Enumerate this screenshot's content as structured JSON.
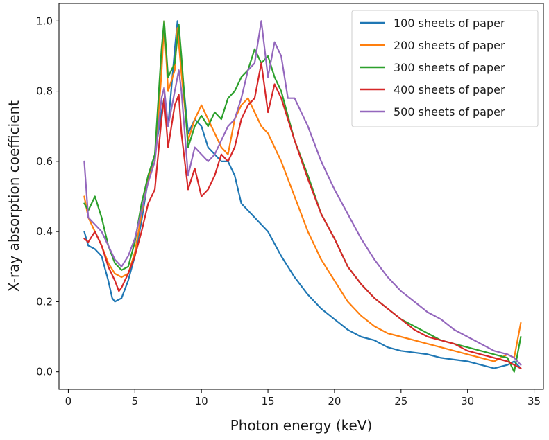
{
  "chart_data": {
    "type": "line",
    "title": "",
    "xlabel": "Photon energy (keV)",
    "ylabel": "X-ray absorption coefficient",
    "xlim": [
      -0.7,
      35.7
    ],
    "ylim": [
      -0.05,
      1.05
    ],
    "xticks": [
      0,
      5,
      10,
      15,
      20,
      25,
      30,
      35
    ],
    "yticks": [
      0.0,
      0.2,
      0.4,
      0.6,
      0.8,
      1.0
    ],
    "ytick_labels": [
      "0.0",
      "0.2",
      "0.4",
      "0.6",
      "0.8",
      "1.0"
    ],
    "grid": false,
    "legend_position": "top-right",
    "series": [
      {
        "name": "100 sheets of paper",
        "color": "#1f77b4",
        "x": [
          1.2,
          1.5,
          2.0,
          2.5,
          3.0,
          3.3,
          3.5,
          4.0,
          4.5,
          5.0,
          5.5,
          6.0,
          6.5,
          7.0,
          7.2,
          7.5,
          8.0,
          8.2,
          8.5,
          9.0,
          9.5,
          10.0,
          10.5,
          11.0,
          11.5,
          12.0,
          12.5,
          13.0,
          14.0,
          15.0,
          16.0,
          17.0,
          18.0,
          19.0,
          20.0,
          21.0,
          22.0,
          23.0,
          24.0,
          25.0,
          26.0,
          27.0,
          28.0,
          29.0,
          30.0,
          31.0,
          32.0,
          33.0,
          33.5,
          34.0
        ],
        "y": [
          0.4,
          0.36,
          0.35,
          0.33,
          0.26,
          0.21,
          0.2,
          0.21,
          0.26,
          0.33,
          0.43,
          0.55,
          0.62,
          0.74,
          0.78,
          0.7,
          0.92,
          1.0,
          0.88,
          0.68,
          0.72,
          0.7,
          0.64,
          0.62,
          0.6,
          0.6,
          0.56,
          0.48,
          0.44,
          0.4,
          0.33,
          0.27,
          0.22,
          0.18,
          0.15,
          0.12,
          0.1,
          0.09,
          0.07,
          0.06,
          0.055,
          0.05,
          0.04,
          0.035,
          0.03,
          0.02,
          0.01,
          0.02,
          0.03,
          0.01
        ]
      },
      {
        "name": "200 sheets of paper",
        "color": "#ff7f0e",
        "x": [
          1.2,
          1.5,
          2.0,
          2.5,
          3.0,
          3.5,
          4.0,
          4.5,
          5.0,
          5.5,
          6.0,
          6.5,
          7.0,
          7.2,
          7.5,
          8.0,
          8.2,
          8.5,
          9.0,
          9.5,
          10.0,
          10.5,
          11.0,
          11.5,
          12.0,
          12.5,
          13.0,
          13.5,
          14.0,
          14.5,
          15.0,
          16.0,
          17.0,
          18.0,
          19.0,
          20.0,
          21.0,
          22.0,
          23.0,
          24.0,
          25.0,
          26.0,
          27.0,
          28.0,
          29.0,
          30.0,
          31.0,
          32.0,
          33.0,
          33.5,
          34.0
        ],
        "y": [
          0.5,
          0.44,
          0.4,
          0.36,
          0.31,
          0.28,
          0.27,
          0.28,
          0.34,
          0.45,
          0.55,
          0.6,
          0.85,
          1.0,
          0.8,
          0.86,
          0.98,
          0.85,
          0.66,
          0.72,
          0.76,
          0.72,
          0.68,
          0.64,
          0.62,
          0.72,
          0.76,
          0.78,
          0.74,
          0.7,
          0.68,
          0.6,
          0.5,
          0.4,
          0.32,
          0.26,
          0.2,
          0.16,
          0.13,
          0.11,
          0.1,
          0.09,
          0.08,
          0.07,
          0.06,
          0.05,
          0.04,
          0.03,
          0.05,
          0.04,
          0.14
        ]
      },
      {
        "name": "300 sheets of paper",
        "color": "#2ca02c",
        "x": [
          1.2,
          1.5,
          2.0,
          2.5,
          3.0,
          3.5,
          4.0,
          4.5,
          5.0,
          5.5,
          6.0,
          6.5,
          7.0,
          7.2,
          7.5,
          8.0,
          8.3,
          8.5,
          9.0,
          9.5,
          10.0,
          10.5,
          11.0,
          11.5,
          12.0,
          12.5,
          13.0,
          13.5,
          14.0,
          14.5,
          15.0,
          15.5,
          16.0,
          17.0,
          18.0,
          19.0,
          20.0,
          21.0,
          22.0,
          23.0,
          24.0,
          25.0,
          26.0,
          27.0,
          28.0,
          29.0,
          30.0,
          31.0,
          32.0,
          33.0,
          33.5,
          34.0
        ],
        "y": [
          0.48,
          0.46,
          0.5,
          0.44,
          0.36,
          0.31,
          0.29,
          0.3,
          0.37,
          0.48,
          0.56,
          0.62,
          0.92,
          1.0,
          0.84,
          0.88,
          0.99,
          0.9,
          0.64,
          0.7,
          0.73,
          0.7,
          0.74,
          0.72,
          0.78,
          0.8,
          0.84,
          0.86,
          0.92,
          0.88,
          0.9,
          0.84,
          0.8,
          0.66,
          0.56,
          0.45,
          0.38,
          0.3,
          0.25,
          0.21,
          0.18,
          0.15,
          0.13,
          0.11,
          0.09,
          0.08,
          0.07,
          0.06,
          0.05,
          0.04,
          0.0,
          0.1
        ]
      },
      {
        "name": "400 sheets of paper",
        "color": "#d62728",
        "x": [
          1.2,
          1.5,
          2.0,
          2.5,
          3.0,
          3.5,
          3.8,
          4.0,
          4.5,
          5.0,
          5.5,
          6.0,
          6.5,
          7.0,
          7.2,
          7.5,
          8.0,
          8.3,
          8.5,
          9.0,
          9.5,
          10.0,
          10.5,
          11.0,
          11.5,
          12.0,
          12.5,
          13.0,
          13.5,
          14.0,
          14.5,
          15.0,
          15.5,
          16.0,
          17.0,
          18.0,
          19.0,
          20.0,
          21.0,
          22.0,
          23.0,
          24.0,
          25.0,
          26.0,
          27.0,
          28.0,
          29.0,
          30.0,
          31.0,
          32.0,
          33.0,
          33.5,
          34.0
        ],
        "y": [
          0.38,
          0.37,
          0.4,
          0.36,
          0.3,
          0.26,
          0.23,
          0.24,
          0.28,
          0.33,
          0.4,
          0.48,
          0.52,
          0.72,
          0.78,
          0.64,
          0.76,
          0.79,
          0.68,
          0.52,
          0.58,
          0.5,
          0.52,
          0.56,
          0.62,
          0.6,
          0.64,
          0.72,
          0.76,
          0.78,
          0.88,
          0.74,
          0.82,
          0.78,
          0.66,
          0.55,
          0.45,
          0.38,
          0.3,
          0.25,
          0.21,
          0.18,
          0.15,
          0.12,
          0.1,
          0.09,
          0.08,
          0.06,
          0.05,
          0.04,
          0.03,
          0.02,
          0.01
        ]
      },
      {
        "name": "500 sheets of paper",
        "color": "#9467bd",
        "x": [
          1.2,
          1.5,
          2.0,
          2.5,
          3.0,
          3.5,
          4.0,
          4.5,
          5.0,
          5.5,
          6.0,
          6.5,
          7.0,
          7.2,
          7.5,
          8.0,
          8.3,
          8.5,
          9.0,
          9.5,
          10.0,
          10.5,
          11.0,
          11.5,
          12.0,
          12.5,
          13.0,
          13.5,
          14.0,
          14.5,
          15.0,
          15.5,
          16.0,
          16.5,
          17.0,
          18.0,
          19.0,
          20.0,
          21.0,
          22.0,
          23.0,
          24.0,
          25.0,
          26.0,
          27.0,
          28.0,
          29.0,
          30.0,
          31.0,
          32.0,
          33.0,
          33.5,
          34.0
        ],
        "y": [
          0.6,
          0.44,
          0.42,
          0.4,
          0.36,
          0.32,
          0.3,
          0.33,
          0.38,
          0.46,
          0.54,
          0.6,
          0.78,
          0.81,
          0.7,
          0.8,
          0.86,
          0.8,
          0.56,
          0.64,
          0.62,
          0.6,
          0.62,
          0.66,
          0.7,
          0.72,
          0.78,
          0.86,
          0.88,
          1.0,
          0.84,
          0.94,
          0.9,
          0.78,
          0.78,
          0.7,
          0.6,
          0.52,
          0.45,
          0.38,
          0.32,
          0.27,
          0.23,
          0.2,
          0.17,
          0.15,
          0.12,
          0.1,
          0.08,
          0.06,
          0.05,
          0.04,
          0.02
        ]
      }
    ]
  }
}
